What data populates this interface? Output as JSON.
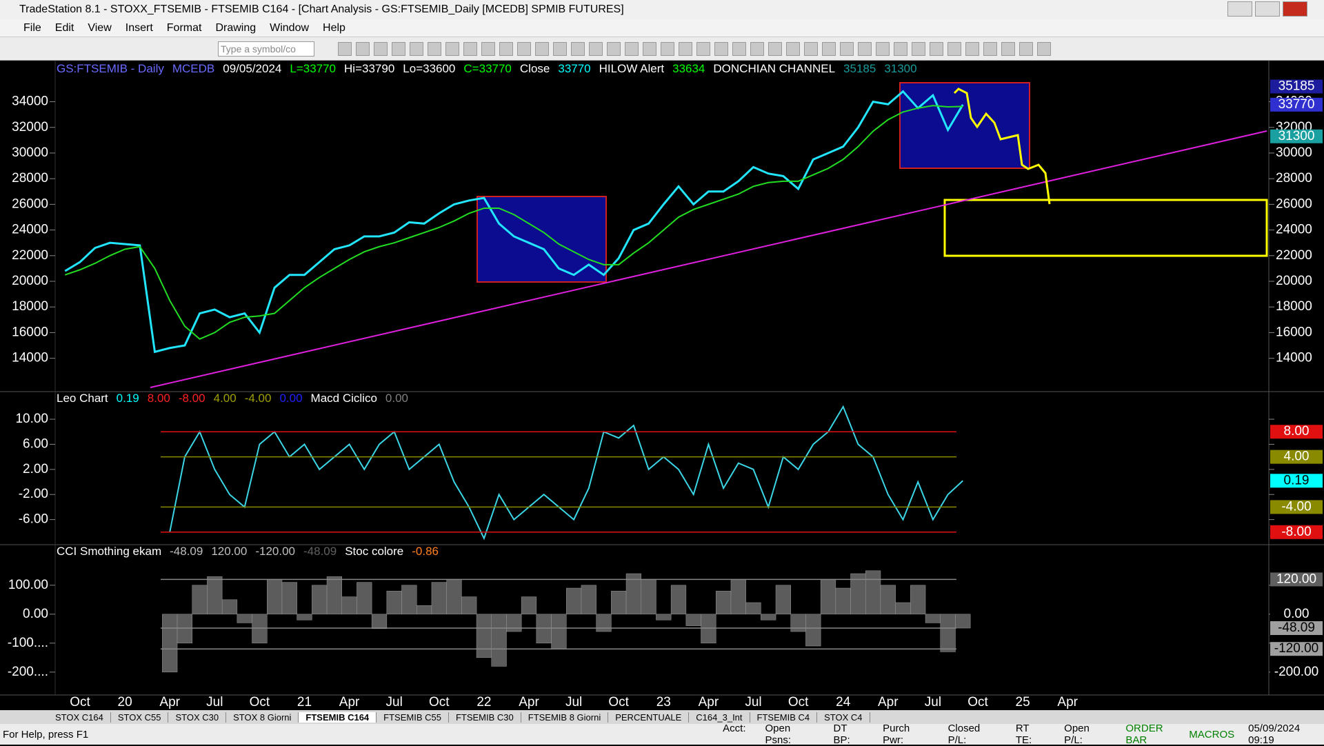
{
  "window": {
    "title": "TradeStation 8.1 - STOXX_FTSEMIB - FTSEMIB C164 - [Chart Analysis - GS:FTSEMIB_Daily  [MCEDB] SPMIB FUTURES]",
    "menu": [
      "File",
      "Edit",
      "View",
      "Insert",
      "Format",
      "Drawing",
      "Window",
      "Help"
    ],
    "symbol_placeholder": "Type a symbol/co"
  },
  "price_panel": {
    "header": [
      {
        "text": "GS:FTSEMIB - Daily",
        "color": "#6a6aff"
      },
      {
        "text": "MCEDB",
        "color": "#6a6aff"
      },
      {
        "text": "09/05/2024",
        "color": "#ffffff"
      },
      {
        "text": "L=33770",
        "color": "#00ff00"
      },
      {
        "text": "Hi=33790",
        "color": "#ffffff"
      },
      {
        "text": "Lo=33600",
        "color": "#ffffff"
      },
      {
        "text": "C=33770",
        "color": "#00ff00"
      },
      {
        "text": "Close",
        "color": "#ffffff"
      },
      {
        "text": "33770",
        "color": "#00ffff"
      },
      {
        "text": "HILOW Alert",
        "color": "#ffffff"
      },
      {
        "text": "33634",
        "color": "#00ff00"
      },
      {
        "text": "DONCHIAN CHANNEL",
        "color": "#ffffff"
      },
      {
        "text": "35185",
        "color": "#1a9a9a"
      },
      {
        "text": "31300",
        "color": "#1a9a9a"
      }
    ],
    "ylim": [
      11400,
      37200
    ],
    "yticks": [
      34000,
      32000,
      30000,
      28000,
      26000,
      24000,
      22000,
      20000,
      18000,
      16000,
      14000
    ],
    "series": [
      {
        "name": "Close",
        "color": "#22e6ff",
        "values": [
          20800,
          21500,
          22600,
          23000,
          22900,
          22800,
          14500,
          14800,
          15000,
          17500,
          17800,
          17200,
          17500,
          16000,
          19500,
          20500,
          20500,
          21500,
          22500,
          22800,
          23500,
          23500,
          23800,
          24600,
          24500,
          25300,
          26000,
          26300,
          26500,
          24500,
          23500,
          23000,
          22500,
          21000,
          20500,
          21300,
          20500,
          21800,
          24000,
          24500,
          26000,
          27400,
          26000,
          27000,
          27000,
          27800,
          28900,
          28400,
          28200,
          27200,
          29500,
          30000,
          30500,
          32000,
          34000,
          33800,
          34800,
          33500,
          34500,
          31800,
          33770
        ]
      },
      {
        "name": "HILOW Alert",
        "color": "#22dd22",
        "values": [
          20500,
          20900,
          21400,
          22000,
          22500,
          22700,
          21000,
          18500,
          16500,
          15500,
          16000,
          16800,
          17200,
          17300,
          17500,
          18500,
          19500,
          20300,
          21000,
          21700,
          22300,
          22700,
          23000,
          23400,
          23800,
          24200,
          24700,
          25300,
          25700,
          25700,
          25200,
          24500,
          23800,
          22900,
          22300,
          21700,
          21300,
          21300,
          22200,
          23000,
          24000,
          25000,
          25600,
          26000,
          26400,
          26800,
          27400,
          27700,
          27800,
          27800,
          28300,
          28800,
          29500,
          30500,
          31700,
          32600,
          33200,
          33500,
          33700,
          33600,
          33634
        ]
      }
    ],
    "tags": [
      {
        "value": 35185,
        "color": "#1c1c9c"
      },
      {
        "value": 33770,
        "color": "#3030d0"
      },
      {
        "value": 31300,
        "color": "#1aa0a0"
      }
    ]
  },
  "macd_panel": {
    "header": [
      {
        "text": "Leo Chart",
        "color": "#ffffff"
      },
      {
        "text": "0.19",
        "color": "#00ffff"
      },
      {
        "text": "8.00",
        "color": "#ff2020"
      },
      {
        "text": "-8.00",
        "color": "#ff2020"
      },
      {
        "text": "4.00",
        "color": "#a0a000"
      },
      {
        "text": "-4.00",
        "color": "#a0a000"
      },
      {
        "text": "0.00",
        "color": "#2020ff"
      },
      {
        "text": "Macd Ciclico",
        "color": "#ffffff"
      },
      {
        "text": "0.00",
        "color": "#808080"
      }
    ],
    "ylim": [
      -10,
      14.4
    ],
    "yticks": [
      {
        "value": 10,
        "label": "10.00"
      },
      {
        "value": 6,
        "label": "6.00"
      },
      {
        "value": 2,
        "label": "2.00"
      },
      {
        "value": -2,
        "label": "-2.00"
      },
      {
        "value": -6,
        "label": "-6.00"
      }
    ],
    "series": [
      {
        "name": "Leo Chart",
        "color": "#3ad6e6",
        "values": [
          -8,
          4,
          8,
          2,
          -2,
          -4,
          6,
          8,
          4,
          6,
          2,
          4,
          6,
          2,
          6,
          8,
          2,
          4,
          6,
          0,
          -4,
          -9,
          -2,
          -6,
          -4,
          -2,
          -4,
          -6,
          -1,
          8,
          7,
          9,
          2,
          4,
          2,
          -2,
          6,
          -1,
          3,
          2,
          -4,
          4,
          2,
          6,
          8,
          12,
          6,
          4,
          -2,
          -6,
          0,
          -6,
          -2,
          0.19
        ]
      }
    ],
    "tags": [
      {
        "value": 8,
        "label": "8.00",
        "color": "#e01010"
      },
      {
        "value": 4,
        "label": "4.00",
        "color": "#8a8a00"
      },
      {
        "value": 0.19,
        "label": "0.19",
        "color": "#00ffff"
      },
      {
        "value": -4,
        "label": "-4.00",
        "color": "#8a8a00"
      },
      {
        "value": -8,
        "label": "-8.00",
        "color": "#e01010"
      }
    ]
  },
  "cci_panel": {
    "header": [
      {
        "text": "CCI Smothing ekam",
        "color": "#ffffff"
      },
      {
        "text": "-48.09",
        "color": "#c0c0c0"
      },
      {
        "text": "120.00",
        "color": "#c0c0c0"
      },
      {
        "text": "-120.00",
        "color": "#c0c0c0"
      },
      {
        "text": "-48.09",
        "color": "#606060"
      },
      {
        "text": "Stoc colore",
        "color": "#ffffff"
      },
      {
        "text": "-0.86",
        "color": "#ff8020"
      }
    ],
    "ylim": [
      -279,
      240
    ],
    "yticks": [
      {
        "value": 100,
        "label": "100.00"
      },
      {
        "value": 0,
        "label": "0.00"
      },
      {
        "value": -100,
        "label": "-100...."
      },
      {
        "value": -200,
        "label": "-200...."
      }
    ],
    "series": [
      {
        "name": "CCI Smothing ekam",
        "color": "#5c5c5c",
        "values": [
          -200,
          -100,
          100,
          130,
          50,
          -30,
          -100,
          120,
          110,
          -20,
          100,
          130,
          60,
          110,
          -50,
          80,
          100,
          30,
          110,
          120,
          60,
          -150,
          -180,
          -60,
          60,
          -100,
          -120,
          90,
          100,
          -60,
          80,
          140,
          120,
          -20,
          100,
          -40,
          -100,
          80,
          120,
          40,
          -20,
          100,
          -60,
          -110,
          120,
          90,
          140,
          150,
          100,
          40,
          100,
          -30,
          -130,
          -48.09
        ]
      }
    ],
    "tags": [
      {
        "value": 120,
        "label": "120.00",
        "color": "#606060"
      },
      {
        "value": 0,
        "label": "0.00",
        "color": "#000000"
      },
      {
        "value": -48.09,
        "label": "-48.09",
        "color": "#a0a0a0"
      },
      {
        "value": -120,
        "label": "-120.00",
        "color": "#a0a0a0"
      },
      {
        "value": -200,
        "label": "-200.00",
        "color": "#000000"
      }
    ]
  },
  "x_axis": [
    "Oct",
    "20",
    "Apr",
    "Jul",
    "Oct",
    "21",
    "Apr",
    "Jul",
    "Oct",
    "22",
    "Apr",
    "Jul",
    "Oct",
    "23",
    "Apr",
    "Jul",
    "Oct",
    "24",
    "Apr",
    "Jul",
    "Oct",
    "25",
    "Apr"
  ],
  "tabs": [
    "STOX C164",
    "STOX C55",
    "STOX C30",
    "STOX 8 Giorni",
    "FTSEMIB C164",
    "FTSEMIB C55",
    "FTSEMIB C30",
    "FTSEMIB 8 Giorni",
    "PERCENTUALE",
    "C164_3_Int",
    "FTSEMIB C4",
    "STOX C4"
  ],
  "status_bar": {
    "help": "For Help, press F1",
    "fields": [
      "Acct:",
      "Open Psns:",
      "DT BP:",
      "Purch Pwr:",
      "Closed P/L:",
      "RT TE:",
      "Open P/L:"
    ],
    "order_bar": "ORDER BAR",
    "macros": "MACROS",
    "datetime": "05/09/2024 09:19"
  }
}
